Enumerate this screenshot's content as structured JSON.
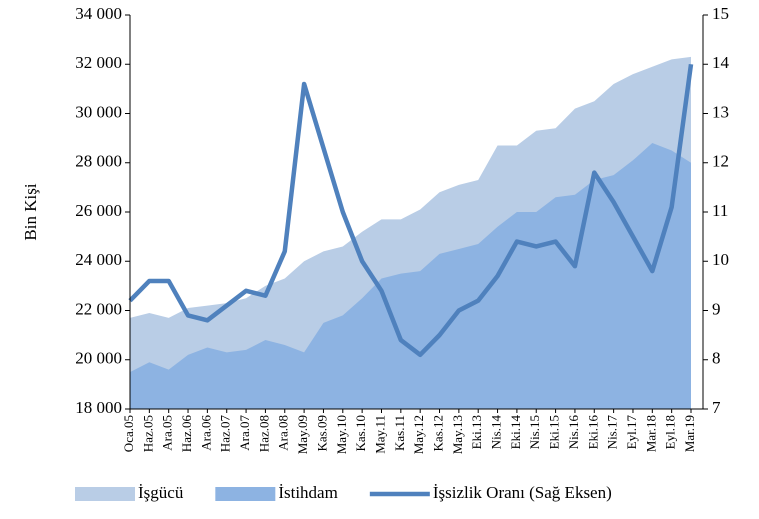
{
  "chart_data": {
    "type": "area",
    "y_label": "Bin Kişi",
    "categories": [
      "Oca.05",
      "Haz.05",
      "Ara.05",
      "Haz.06",
      "Ara.06",
      "Haz.07",
      "Ara.07",
      "Haz.08",
      "Ara.08",
      "May.09",
      "Kas.09",
      "May.10",
      "Kas.10",
      "May.11",
      "Kas.11",
      "May.12",
      "Kas.12",
      "May.13",
      "Eki.13",
      "Nis.14",
      "Eki.14",
      "Nis.15",
      "Eki.15",
      "Nis.16",
      "Eki.16",
      "Nis.17",
      "Eyl.17",
      "Mar.18",
      "Eyl.18",
      "Mar.19"
    ],
    "series": [
      {
        "name": "İşgücü",
        "type": "area",
        "color": "#b9cde6",
        "values": [
          21700,
          21900,
          21700,
          22100,
          22200,
          22300,
          22500,
          23000,
          23300,
          24000,
          24400,
          24600,
          25200,
          25700,
          25700,
          26100,
          26800,
          27100,
          27300,
          28700,
          28700,
          29300,
          29400,
          30200,
          30500,
          31200,
          31600,
          31900,
          32200,
          32300
        ]
      },
      {
        "name": "İstihdam",
        "type": "area",
        "color": "#8db3e2",
        "values": [
          19500,
          19900,
          19600,
          20200,
          20500,
          20300,
          20400,
          20800,
          20600,
          20300,
          21500,
          21800,
          22500,
          23300,
          23500,
          23600,
          24300,
          24500,
          24700,
          25400,
          26000,
          26000,
          26600,
          26700,
          27300,
          27500,
          28100,
          28800,
          28500,
          28000
        ]
      },
      {
        "name": "İşsizlik Oranı (Sağ Eksen)",
        "type": "line",
        "axis": "y2",
        "color": "#4f81bd",
        "values": [
          9.2,
          9.6,
          9.6,
          8.9,
          8.8,
          9.1,
          9.4,
          9.3,
          10.2,
          13.6,
          12.3,
          11.0,
          10.0,
          9.4,
          8.4,
          8.1,
          8.5,
          9.0,
          9.2,
          9.7,
          10.4,
          10.3,
          10.4,
          9.9,
          11.8,
          11.2,
          10.5,
          9.8,
          11.1,
          14.0
        ]
      }
    ],
    "ylim": [
      18000,
      34000
    ],
    "yticks": [
      {
        "value": 18000,
        "label": "18 000"
      },
      {
        "value": 20000,
        "label": "20 000"
      },
      {
        "value": 22000,
        "label": "22 000"
      },
      {
        "value": 24000,
        "label": "24 000"
      },
      {
        "value": 26000,
        "label": "26 000"
      },
      {
        "value": 28000,
        "label": "28 000"
      },
      {
        "value": 30000,
        "label": "30 000"
      },
      {
        "value": 32000,
        "label": "32 000"
      },
      {
        "value": 34000,
        "label": "34 000"
      }
    ],
    "y2lim": [
      7,
      15
    ],
    "y2ticks": [
      7,
      8,
      9,
      10,
      11,
      12,
      13,
      14,
      15
    ],
    "legend": "bottom"
  }
}
